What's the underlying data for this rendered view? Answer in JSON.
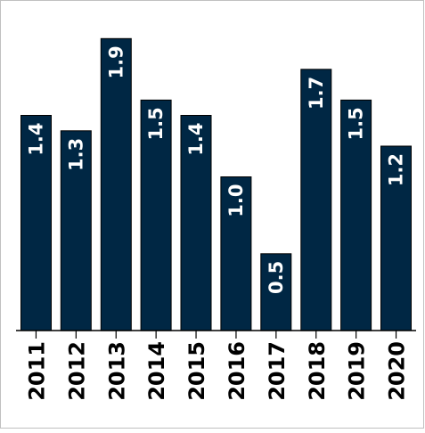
{
  "colors": {
    "bar": "#002744",
    "bar_label": "#ffffff",
    "frame": "#c0c0c0",
    "axis": "#000000"
  },
  "chart_data": {
    "type": "bar",
    "categories": [
      "2011",
      "2012",
      "2013",
      "2014",
      "2015",
      "2016",
      "2017",
      "2018",
      "2019",
      "2020"
    ],
    "values": [
      1.4,
      1.3,
      1.9,
      1.5,
      1.4,
      1.0,
      0.5,
      1.7,
      1.5,
      1.2
    ],
    "data_labels": [
      "1.4",
      "1.3",
      "1.9",
      "1.5",
      "1.4",
      "1.0",
      "0.5",
      "1.7",
      "1.5",
      "1.2"
    ],
    "title": "",
    "xlabel": "",
    "ylabel": "",
    "ylim": [
      0,
      2.0
    ],
    "grid": false,
    "legend": "none"
  }
}
